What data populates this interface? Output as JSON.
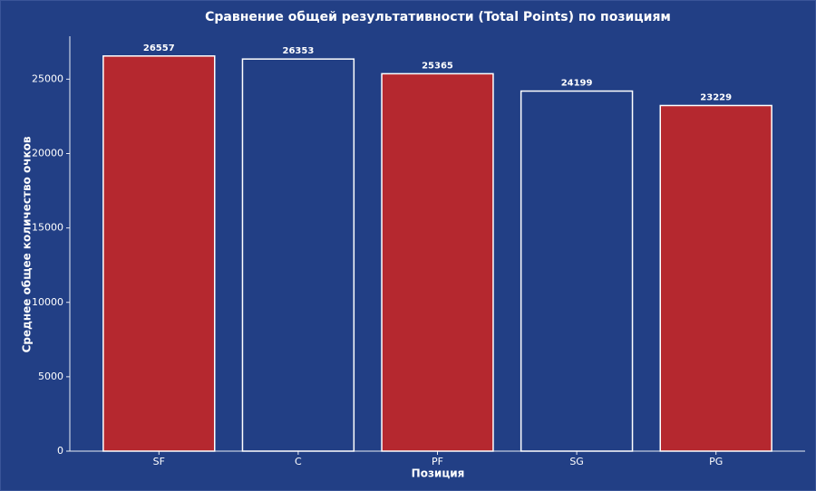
{
  "chart_data": {
    "type": "bar",
    "title": "Сравнение общей результативности (Total Points) по позициям",
    "x_label": "Позиция",
    "y_label": "Среднее общее количество очков",
    "categories": [
      "SF",
      "C",
      "PF",
      "SG",
      "PG"
    ],
    "values": [
      26557,
      26353,
      25365,
      24199,
      23229
    ],
    "colors": [
      "#b5282f",
      "#223f85",
      "#b5282f",
      "#223f85",
      "#b5282f"
    ],
    "edgecolor": "#ffffff",
    "ylim": [
      0,
      27885
    ],
    "yticks": [
      0,
      5000,
      10000,
      15000,
      20000,
      25000
    ],
    "grid": false
  }
}
